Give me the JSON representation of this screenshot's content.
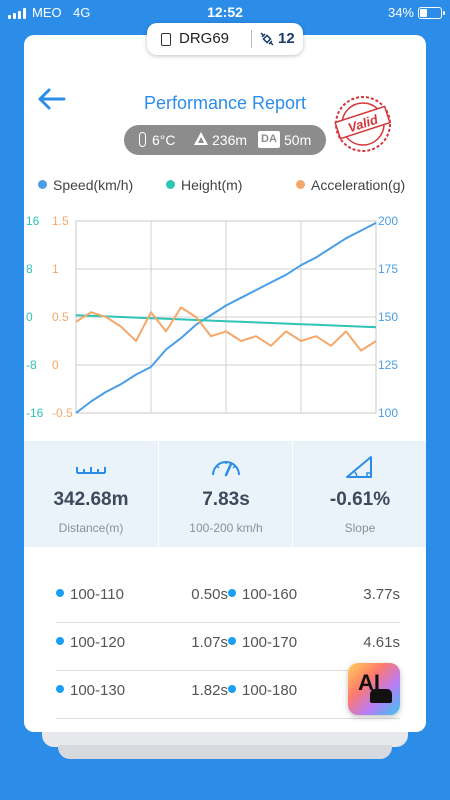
{
  "status_bar": {
    "carrier": "MEO",
    "network": "4G",
    "time": "12:52",
    "battery": "34%",
    "battery_level": 0.34
  },
  "device": {
    "name": "DRG69",
    "satellites": "12"
  },
  "header": {
    "title": "Performance Report",
    "stamp_text": "Valid",
    "back_icon": "arrow-left-icon"
  },
  "conditions": {
    "temperature": "6°C",
    "height": "236m",
    "da_label": "DA",
    "da_value": "50m"
  },
  "legend": [
    {
      "label": "Speed(km/h)",
      "color": "#4a9ee8"
    },
    {
      "label": "Height(m)",
      "color": "#2ec4b6"
    },
    {
      "label": "Acceleration(g)",
      "color": "#f5a86b"
    }
  ],
  "chart_data": {
    "type": "line",
    "x": [
      0,
      1,
      2,
      3,
      4,
      5,
      6,
      7,
      8,
      9,
      10,
      11,
      12,
      13,
      14,
      15,
      16,
      17,
      18,
      19,
      20
    ],
    "series": [
      {
        "name": "Speed(km/h)",
        "color": "#4a9ee8",
        "axis": "right",
        "values": [
          100,
          106,
          111,
          115,
          120,
          124,
          133,
          139,
          146,
          151,
          156,
          160,
          164,
          168,
          172,
          177,
          181,
          186,
          191,
          195,
          199
        ]
      },
      {
        "name": "Height(m)",
        "color": "#2ec4b6",
        "axis": "left-outer",
        "values": [
          0.3,
          0.2,
          0.1,
          0.0,
          -0.1,
          -0.2,
          -0.3,
          -0.4,
          -0.5,
          -0.6,
          -0.7,
          -0.8,
          -0.9,
          -1.0,
          -1.1,
          -1.2,
          -1.3,
          -1.4,
          -1.5,
          -1.6,
          -1.7
        ]
      },
      {
        "name": "Acceleration(g)",
        "color": "#f5a86b",
        "axis": "left-inner",
        "values": [
          0.45,
          0.55,
          0.5,
          0.4,
          0.25,
          0.55,
          0.35,
          0.6,
          0.5,
          0.3,
          0.35,
          0.25,
          0.3,
          0.2,
          0.35,
          0.25,
          0.3,
          0.2,
          0.35,
          0.15,
          0.25
        ]
      }
    ],
    "axes": {
      "left_outer": {
        "ticks": [
          "16",
          "8",
          "0",
          "-8",
          "-16"
        ],
        "range": [
          -16,
          16
        ],
        "color": "#2ec4b6"
      },
      "left_inner": {
        "ticks": [
          "1.5",
          "1",
          "0.5",
          "0",
          "-0.5"
        ],
        "range": [
          -0.5,
          1.5
        ],
        "color": "#f5a86b"
      },
      "right": {
        "ticks": [
          "200",
          "175",
          "150",
          "125",
          "100"
        ],
        "range": [
          100,
          200
        ],
        "color": "#4a9ee8"
      }
    },
    "grid": true
  },
  "stats": [
    {
      "icon": "ruler-icon",
      "value": "342.68m",
      "label": "Distance(m)"
    },
    {
      "icon": "speedometer-icon",
      "value": "7.83s",
      "label": "100-200 km/h"
    },
    {
      "icon": "slope-icon",
      "value": "-0.61%",
      "label": "Slope"
    }
  ],
  "splits": [
    {
      "left_range": "100-110",
      "left_time": "0.50s",
      "right_range": "100-160",
      "right_time": "3.77s"
    },
    {
      "left_range": "100-120",
      "left_time": "1.07s",
      "right_range": "100-170",
      "right_time": "4.61s"
    },
    {
      "left_range": "100-130",
      "left_time": "1.82s",
      "right_range": "100-180",
      "right_time": ""
    }
  ],
  "ai_button": {
    "label": "AI"
  }
}
